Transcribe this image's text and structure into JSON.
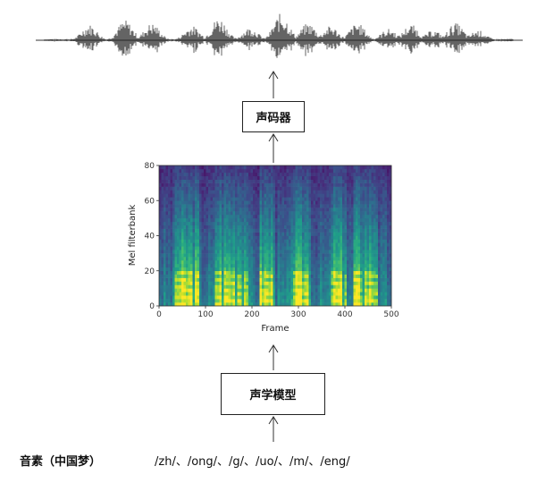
{
  "waveform": {
    "label": ""
  },
  "vocoder": {
    "label": "声码器"
  },
  "acoustic_model": {
    "label": "声学模型"
  },
  "phonemes": {
    "label": "音素（中国梦）",
    "sequence": "/zh/、/ong/、/g/、/uo/、/m/、/eng/"
  },
  "chart_data": {
    "type": "heatmap",
    "title": "",
    "xlabel": "Frame",
    "ylabel": "Mel filterbank",
    "xlim": [
      0,
      500
    ],
    "ylim": [
      0,
      80
    ],
    "x_ticks": [
      "0",
      "100",
      "200",
      "300",
      "400",
      "500"
    ],
    "y_ticks": [
      "0",
      "20",
      "40",
      "60",
      "80"
    ],
    "colormap": "viridis"
  }
}
